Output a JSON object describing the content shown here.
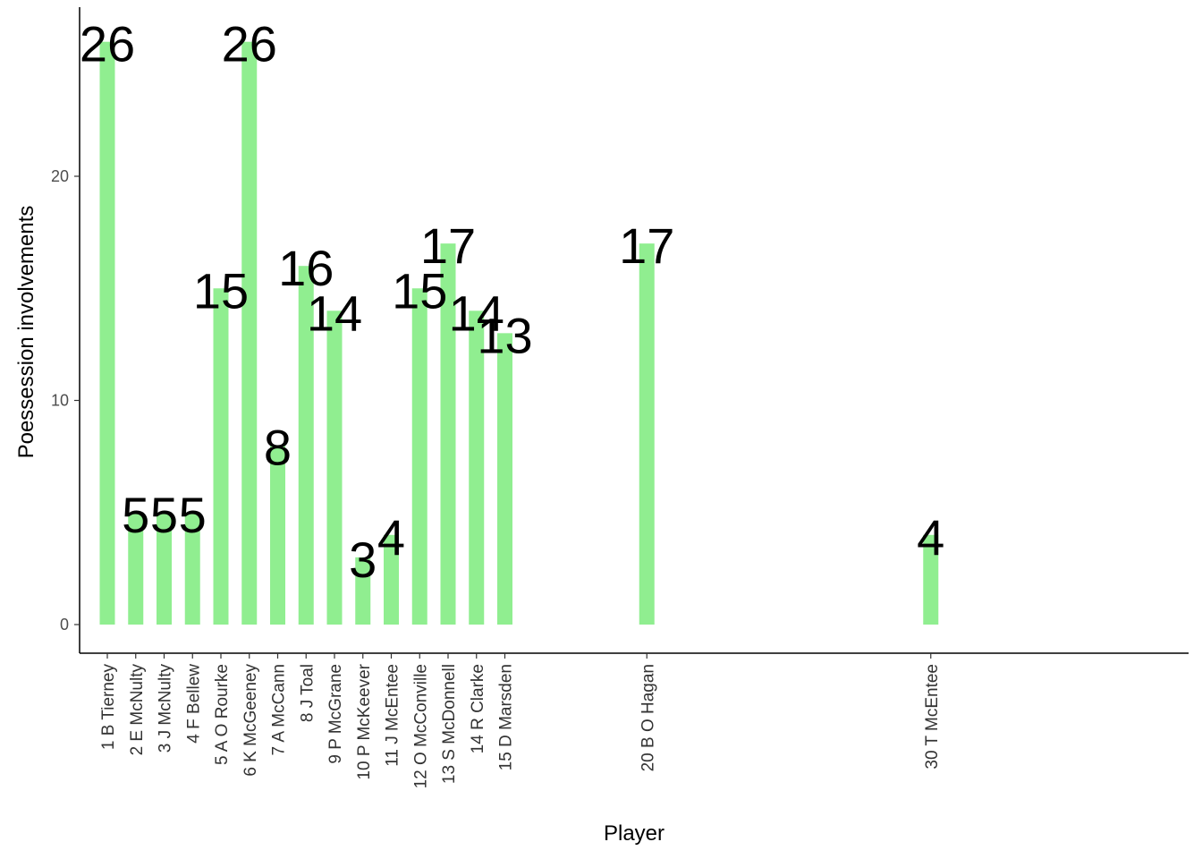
{
  "chart_data": {
    "type": "bar",
    "xlabel": "Player",
    "ylabel": "Poessession involvements",
    "x": [
      1,
      2,
      3,
      4,
      5,
      6,
      7,
      8,
      9,
      10,
      11,
      12,
      13,
      14,
      15,
      20,
      30
    ],
    "categories": [
      "1 B Tierney",
      "2 E McNulty",
      "3 J McNulty",
      "4 F Bellew",
      "5 A O Rourke",
      "6 K McGeeney",
      "7 A McCann",
      "8 J Toal",
      "9 P McGrane",
      "10 P McKeever",
      "11 J McEntee",
      "12 O McConville",
      "13 S McDonnell",
      "14 R Clarke",
      "15 D Marsden",
      "20 B O Hagan",
      "30 T McEntee"
    ],
    "values": [
      26,
      5,
      5,
      5,
      15,
      26,
      8,
      16,
      14,
      3,
      4,
      15,
      17,
      14,
      13,
      17,
      4
    ],
    "data_labels": [
      "26",
      "5",
      "5",
      "5",
      "15",
      "26",
      "8",
      "16",
      "14",
      "3",
      "4",
      "15",
      "17",
      "14",
      "13",
      "17",
      "4"
    ],
    "xlim": [
      0.1,
      36
    ],
    "ylim": [
      0,
      26
    ],
    "yticks": [
      0,
      10,
      20
    ],
    "ytick_labels": [
      "0",
      "10",
      "20"
    ],
    "bar_color": "#90EE90",
    "grid": false,
    "legend": "none"
  }
}
